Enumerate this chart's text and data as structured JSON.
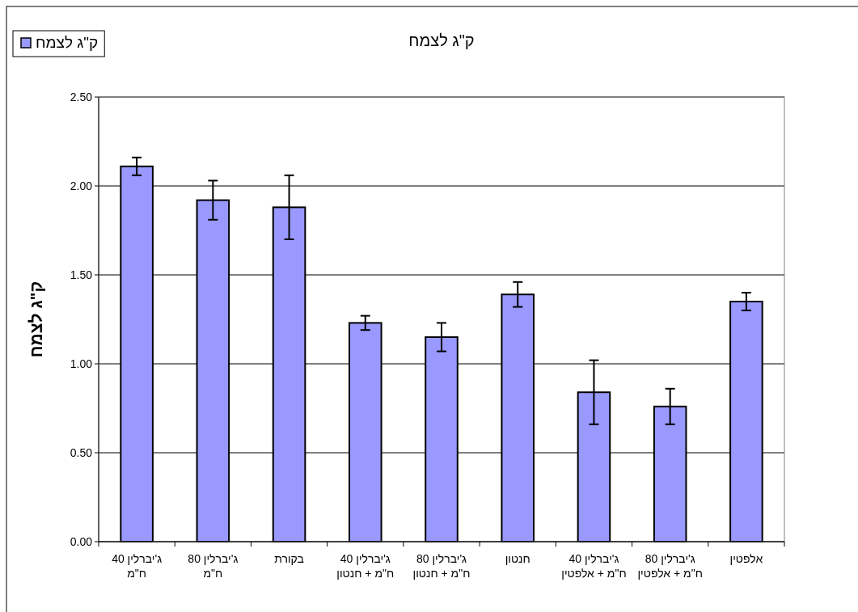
{
  "chart_data": {
    "type": "bar",
    "title": "ק\"ג לצמח",
    "ylabel": "ק\"ג לצמח",
    "categories": [
      "ג'יברלין 40 ח\"מ",
      "ג'יברלין 80 ח\"מ",
      "בקורת",
      "ג'יברלין 40 ח\"מ + חנטון",
      "ג'יברלין 80 ח\"מ + חנטון",
      "חנטון",
      "ג'יברלין 40 ח\"מ + אלפטין",
      "ג'יברלין 80 ח\"מ + אלפטין",
      "אלפטין"
    ],
    "series": [
      {
        "name": "ק\"ג לצמח",
        "color": "#9999ff",
        "values": [
          2.11,
          1.92,
          1.88,
          1.23,
          1.15,
          1.39,
          0.84,
          0.76,
          1.35
        ],
        "errors": [
          0.05,
          0.11,
          0.18,
          0.04,
          0.08,
          0.07,
          0.18,
          0.1,
          0.05
        ]
      }
    ],
    "ylim": [
      0,
      2.5
    ],
    "yticks": [
      {
        "value": 0,
        "label": "0.00"
      },
      {
        "value": 0.5,
        "label": "0.50"
      },
      {
        "value": 1,
        "label": "1.00"
      },
      {
        "value": 1.5,
        "label": "1.50"
      },
      {
        "value": 2,
        "label": "2.00"
      },
      {
        "value": 2.5,
        "label": "2.50"
      }
    ],
    "grid": "y",
    "legend": "top left"
  }
}
